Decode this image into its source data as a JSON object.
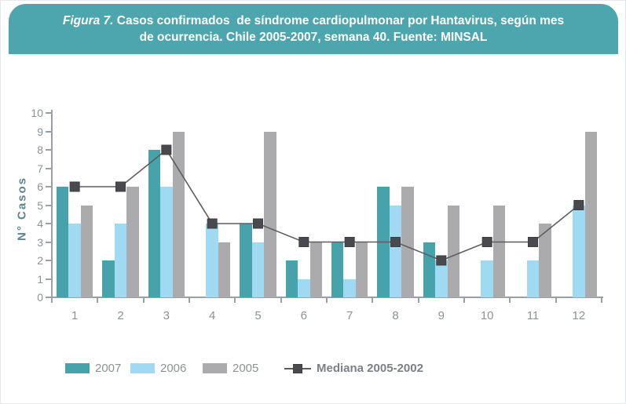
{
  "banner": {
    "figura_label": "Figura 7.",
    "title_line1": " Casos confirmados  de síndrome cardiopulmonar por Hantavirus, según mes",
    "title_line2": "de ocurrencia. Chile 2005-2007, semana 40. Fuente: MINSAL",
    "background": "#4da6ad",
    "text_color": "#ffffff"
  },
  "legend": {
    "items": [
      "2007",
      "2006",
      "2005",
      "Mediana 2005-2002"
    ]
  },
  "chart_data": {
    "type": "bar",
    "title": "Figura 7. Casos confirmados de síndrome cardiopulmonar por Hantavirus, según mes de ocurrencia. Chile 2005-2007, semana 40. Fuente: MINSAL",
    "categories": [
      "1",
      "2",
      "3",
      "4",
      "5",
      "6",
      "7",
      "8",
      "9",
      "10",
      "11",
      "12"
    ],
    "series": [
      {
        "name": "2007",
        "type": "bar",
        "color": "#47a3ab",
        "values": [
          6,
          2,
          8,
          0,
          4,
          2,
          3,
          6,
          3,
          0,
          0,
          0
        ]
      },
      {
        "name": "2006",
        "type": "bar",
        "color": "#9fd9f2",
        "values": [
          4,
          4,
          6,
          4,
          3,
          1,
          1,
          5,
          2,
          2,
          2,
          5
        ]
      },
      {
        "name": "2005",
        "type": "bar",
        "color": "#ababae",
        "values": [
          5,
          6,
          9,
          3,
          9,
          3,
          3,
          6,
          5,
          5,
          4,
          9
        ]
      },
      {
        "name": "Mediana 2005-2002",
        "type": "line",
        "color": "#5d5d61",
        "marker": "square",
        "marker_color": "#4a4a4e",
        "values": [
          6,
          6,
          8,
          4,
          4,
          3,
          3,
          3,
          2,
          3,
          3,
          5
        ]
      }
    ],
    "xlabel": "",
    "ylabel": "N° Casos",
    "ylim": [
      0,
      10
    ],
    "ytick_step": 1,
    "grid": false,
    "legend_position": "bottom"
  }
}
